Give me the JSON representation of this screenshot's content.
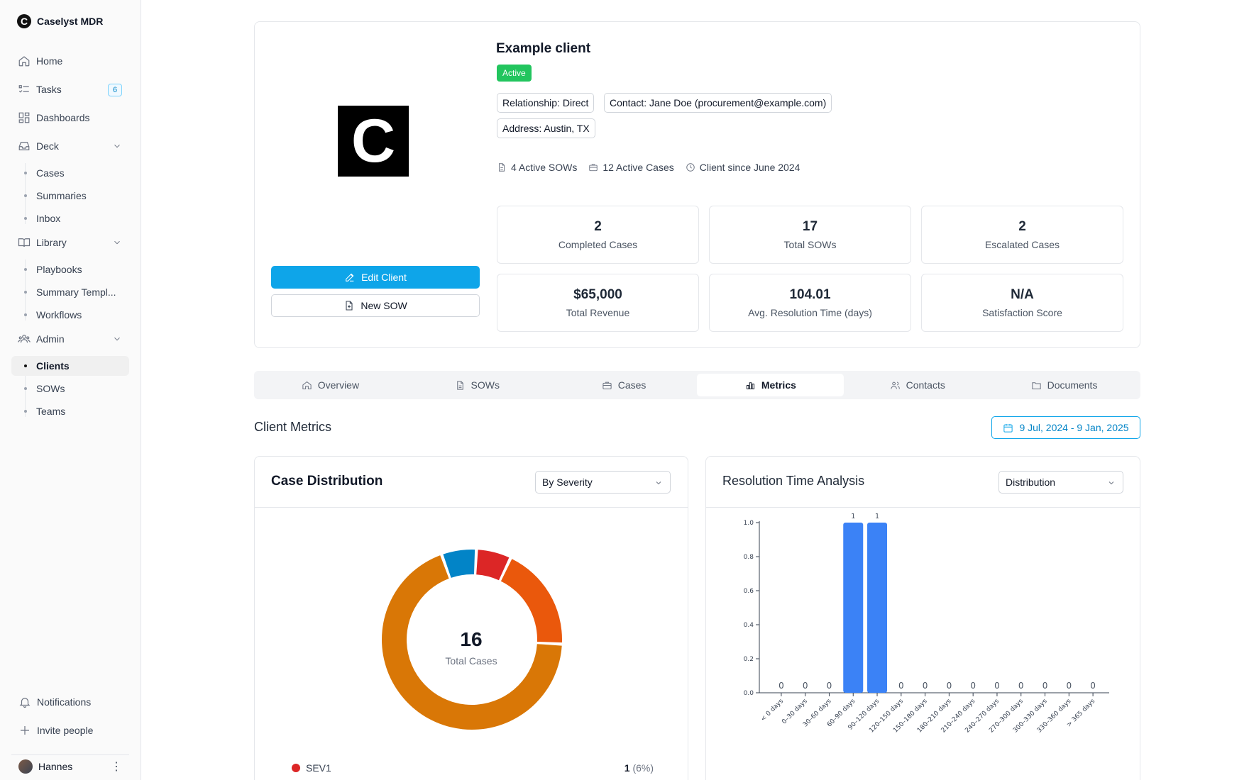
{
  "app": {
    "name": "Caselyst MDR",
    "logo_letter": "C"
  },
  "sidebar": {
    "home": "Home",
    "tasks": "Tasks",
    "tasks_badge": "6",
    "dashboards": "Dashboards",
    "deck": "Deck",
    "deck_items": [
      "Cases",
      "Summaries",
      "Inbox"
    ],
    "library": "Library",
    "library_items": [
      "Playbooks",
      "Summary Templ...",
      "Workflows"
    ],
    "admin": "Admin",
    "admin_items": [
      "Clients",
      "SOWs",
      "Teams"
    ],
    "active_item": "Clients",
    "notifications": "Notifications",
    "invite": "Invite people",
    "user": "Hannes"
  },
  "client": {
    "name": "Example client",
    "logo_letter": "C",
    "status": "Active",
    "status_color": "#22c55e",
    "relationship": "Relationship: Direct",
    "contact": "Contact: Jane Doe (procurement@example.com)",
    "address": "Address: Austin, TX",
    "active_sows": "4 Active SOWs",
    "active_cases": "12 Active Cases",
    "client_since": "Client since June 2024",
    "edit_label": "Edit Client",
    "new_sow_label": "New SOW"
  },
  "stats": [
    {
      "value": "2",
      "label": "Completed Cases"
    },
    {
      "value": "17",
      "label": "Total SOWs"
    },
    {
      "value": "2",
      "label": "Escalated Cases"
    },
    {
      "value": "$65,000",
      "label": "Total Revenue"
    },
    {
      "value": "104.01",
      "label": "Avg. Resolution Time (days)"
    },
    {
      "value": "N/A",
      "label": "Satisfaction Score"
    }
  ],
  "tabs": [
    "Overview",
    "SOWs",
    "Cases",
    "Metrics",
    "Contacts",
    "Documents"
  ],
  "active_tab": "Metrics",
  "metrics": {
    "title": "Client Metrics",
    "date_range": "9 Jul, 2024 - 9 Jan, 2025",
    "case_distribution": {
      "title": "Case Distribution",
      "select": "By Severity",
      "total": "16",
      "total_label": "Total Cases",
      "legend_name": "SEV1",
      "legend_count": "1",
      "legend_pct": "(6%)"
    },
    "resolution": {
      "title": "Resolution Time Analysis",
      "select": "Distribution"
    }
  },
  "chart_data": [
    {
      "type": "pie",
      "title": "Case Distribution",
      "categories": [
        "SEV1",
        "",
        "",
        ""
      ],
      "values": [
        1,
        3,
        11,
        1
      ],
      "colors": [
        "#dc2626",
        "#ea580c",
        "#d97706",
        "#0284c7"
      ],
      "center_value": "16",
      "center_label": "Total Cases"
    },
    {
      "type": "bar",
      "title": "Resolution Time Analysis",
      "categories": [
        "< 0 days",
        "0–30 days",
        "30–60 days",
        "60–90 days",
        "90–120 days",
        "120–150 days",
        "150–180 days",
        "180–210 days",
        "210–240 days",
        "240–270 days",
        "270–300 days",
        "300–330 days",
        "330–360 days",
        "> 365 days"
      ],
      "values": [
        0,
        0,
        0,
        1,
        1,
        0,
        0,
        0,
        0,
        0,
        0,
        0,
        0,
        0
      ],
      "yticks": [
        "0.0",
        "0.2",
        "0.4",
        "0.6",
        "0.8",
        "1.0"
      ],
      "ylim": [
        0,
        1
      ],
      "color": "#3b82f6"
    }
  ]
}
